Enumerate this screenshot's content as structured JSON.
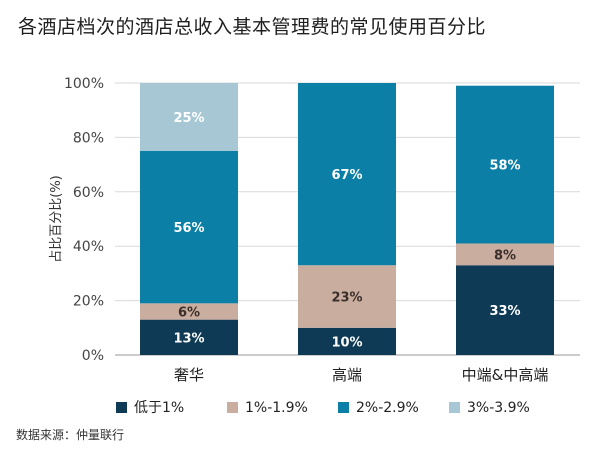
{
  "title": "各酒店档次的酒店总收入基本管理费的常见使用百分比",
  "source": "数据来源：仲量联行",
  "chart_data": {
    "type": "bar",
    "stacked": true,
    "title": "各酒店档次的酒店总收入基本管理费的常见使用百分比",
    "ylabel": "占比百分比(%)",
    "xlabel": "",
    "ylim": [
      0,
      100
    ],
    "yticks": [
      "0%",
      "20%",
      "40%",
      "60%",
      "80%",
      "100%"
    ],
    "categories": [
      "奢华",
      "高端",
      "中端&中高端"
    ],
    "series": [
      {
        "name": "低于1%",
        "color": "#0f3a55",
        "values": [
          13,
          10,
          33
        ],
        "labels": [
          "13%",
          "10%",
          "33%"
        ],
        "label_color": "#ffffff"
      },
      {
        "name": "1%-1.9%",
        "color": "#c9ad9f",
        "values": [
          6,
          23,
          8
        ],
        "labels": [
          "6%",
          "23%",
          "8%"
        ],
        "label_color": "#3a2f2a"
      },
      {
        "name": "2%-2.9%",
        "color": "#0b7fa6",
        "values": [
          56,
          67,
          58
        ],
        "labels": [
          "56%",
          "67%",
          "58%"
        ],
        "label_color": "#ffffff"
      },
      {
        "name": "3%-3.9%",
        "color": "#a6c7d3",
        "values": [
          25,
          0,
          0
        ],
        "labels": [
          "25%",
          "",
          ""
        ],
        "label_color": "#ffffff"
      }
    ],
    "grid": true,
    "legend_position": "bottom"
  }
}
